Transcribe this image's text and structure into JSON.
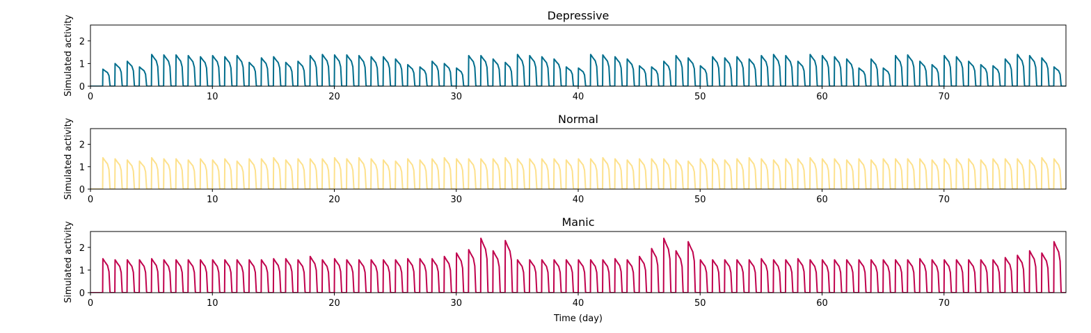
{
  "chart_data": [
    {
      "type": "line",
      "title": "Depressive",
      "ylabel": "Simulated activity",
      "xlabel": "",
      "xlim": [
        0,
        80
      ],
      "ylim": [
        0,
        2.7
      ],
      "xticks": [
        0,
        10,
        20,
        30,
        40,
        50,
        60,
        70
      ],
      "yticks": [
        0,
        1,
        2
      ],
      "grid": false,
      "color": "#006d8c",
      "series": [
        {
          "peaks": [
            0.75,
            1.0,
            1.1,
            0.85,
            1.4,
            1.38,
            1.38,
            1.35,
            1.3,
            1.35,
            1.3,
            1.35,
            1.05,
            1.25,
            1.3,
            1.05,
            1.1,
            1.35,
            1.4,
            1.38,
            1.38,
            1.35,
            1.3,
            1.3,
            1.2,
            0.95,
            0.85,
            1.1,
            1.0,
            0.8,
            1.35,
            1.35,
            1.2,
            1.05,
            1.4,
            1.35,
            1.3,
            1.2,
            0.85,
            0.8,
            1.4,
            1.38,
            1.3,
            1.2,
            0.9,
            0.85,
            1.1,
            1.35,
            1.25,
            0.9,
            1.3,
            1.25,
            1.3,
            1.2,
            1.35,
            1.4,
            1.35,
            1.1,
            1.4,
            1.35,
            1.3,
            1.2,
            0.8,
            1.2,
            0.8,
            1.35,
            1.38,
            1.1,
            0.95,
            1.35,
            1.3,
            1.1,
            0.95,
            0.9,
            1.2,
            1.4,
            1.35,
            1.25,
            0.85
          ]
        }
      ]
    },
    {
      "type": "line",
      "title": "Normal",
      "ylabel": "Simulated activity",
      "xlabel": "",
      "xlim": [
        0,
        80
      ],
      "ylim": [
        0,
        2.7
      ],
      "xticks": [
        0,
        10,
        20,
        30,
        40,
        50,
        60,
        70
      ],
      "yticks": [
        0,
        1,
        2
      ],
      "grid": false,
      "color": "#fde18c",
      "series": [
        {
          "peaks": [
            1.4,
            1.35,
            1.3,
            1.25,
            1.4,
            1.35,
            1.35,
            1.3,
            1.35,
            1.3,
            1.35,
            1.25,
            1.35,
            1.35,
            1.4,
            1.3,
            1.35,
            1.35,
            1.35,
            1.4,
            1.35,
            1.4,
            1.35,
            1.3,
            1.25,
            1.35,
            1.3,
            1.35,
            1.4,
            1.35,
            1.35,
            1.35,
            1.35,
            1.4,
            1.35,
            1.35,
            1.35,
            1.35,
            1.3,
            1.35,
            1.35,
            1.4,
            1.35,
            1.3,
            1.35,
            1.35,
            1.35,
            1.3,
            1.25,
            1.35,
            1.35,
            1.3,
            1.35,
            1.4,
            1.35,
            1.3,
            1.35,
            1.35,
            1.4,
            1.35,
            1.35,
            1.3,
            1.35,
            1.3,
            1.35,
            1.35,
            1.35,
            1.35,
            1.3,
            1.35,
            1.35,
            1.35,
            1.3,
            1.35,
            1.35,
            1.35,
            1.3,
            1.4,
            1.35
          ]
        }
      ]
    },
    {
      "type": "line",
      "title": "Manic",
      "ylabel": "Simulated activity",
      "xlabel": "Time (day)",
      "xlim": [
        0,
        80
      ],
      "ylim": [
        0,
        2.7
      ],
      "xticks": [
        0,
        10,
        20,
        30,
        40,
        50,
        60,
        70
      ],
      "yticks": [
        0,
        1,
        2
      ],
      "grid": false,
      "color": "#c0004c",
      "series": [
        {
          "peaks": [
            1.5,
            1.45,
            1.45,
            1.45,
            1.5,
            1.45,
            1.45,
            1.45,
            1.45,
            1.45,
            1.45,
            1.45,
            1.45,
            1.45,
            1.5,
            1.5,
            1.45,
            1.6,
            1.45,
            1.5,
            1.45,
            1.45,
            1.45,
            1.45,
            1.45,
            1.5,
            1.5,
            1.5,
            1.6,
            1.75,
            1.9,
            2.4,
            1.85,
            2.3,
            1.45,
            1.45,
            1.45,
            1.45,
            1.45,
            1.45,
            1.45,
            1.45,
            1.5,
            1.45,
            1.6,
            1.95,
            2.4,
            1.85,
            2.25,
            1.45,
            1.45,
            1.45,
            1.45,
            1.45,
            1.5,
            1.45,
            1.45,
            1.5,
            1.45,
            1.45,
            1.45,
            1.45,
            1.45,
            1.45,
            1.45,
            1.45,
            1.45,
            1.5,
            1.45,
            1.45,
            1.45,
            1.45,
            1.45,
            1.45,
            1.55,
            1.65,
            1.85,
            1.75,
            2.25
          ]
        }
      ]
    }
  ]
}
